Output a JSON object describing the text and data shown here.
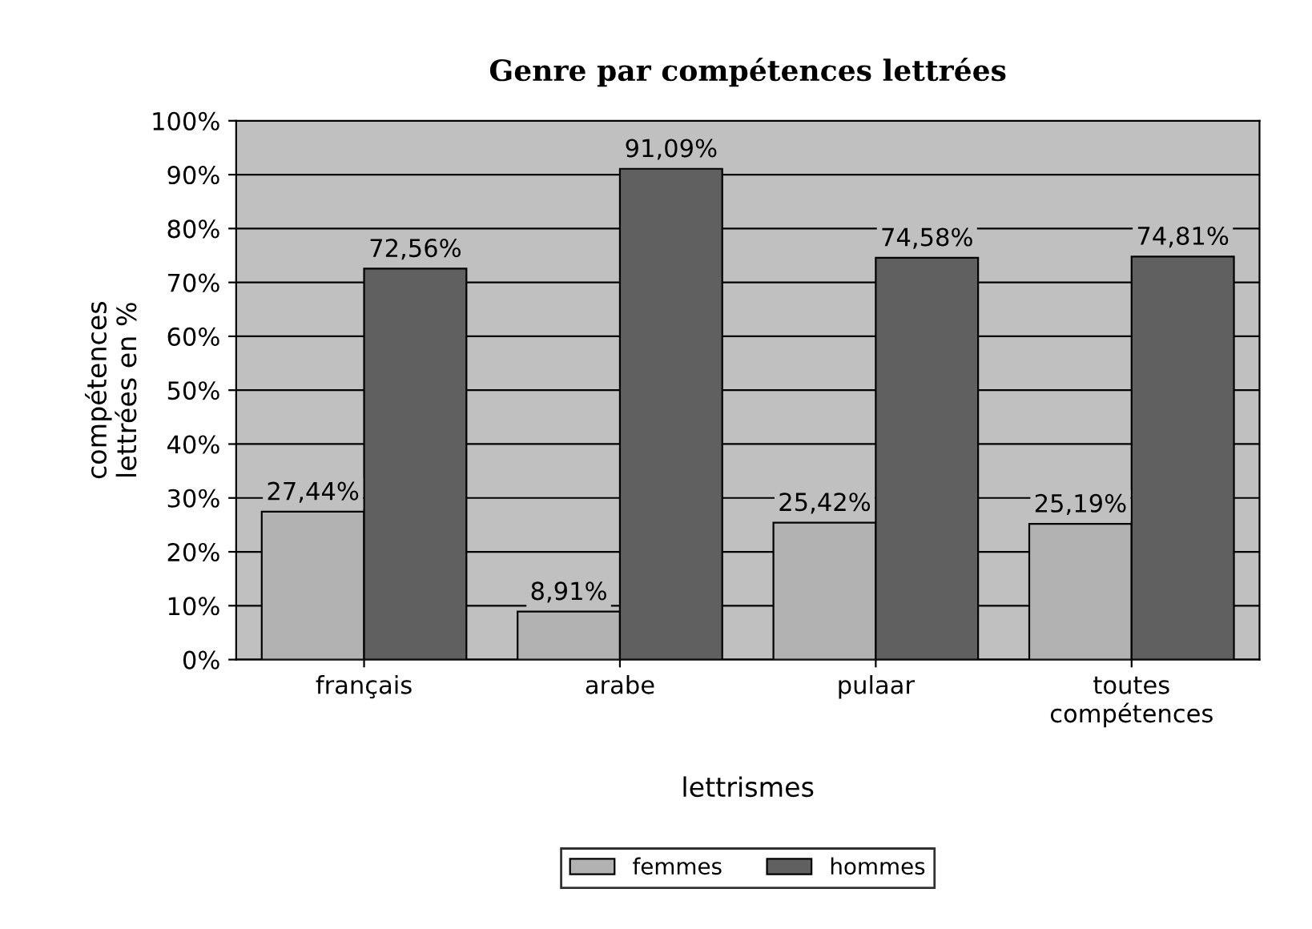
{
  "chart_data": {
    "type": "bar",
    "title": "Genre par compétences lettrées",
    "xlabel": "lettrismes",
    "ylabel": "compétences\nlettrées en %",
    "categories": [
      "français",
      "arabe",
      "pulaar",
      "toutes\ncompétences"
    ],
    "series": [
      {
        "name": "femmes",
        "color": "#b2b2b2",
        "values": [
          27.44,
          8.91,
          25.42,
          25.19
        ],
        "value_labels": [
          "27,44%",
          "8,91%",
          "25,42%",
          "25,19%"
        ]
      },
      {
        "name": "hommes",
        "color": "#606060",
        "values": [
          72.56,
          91.09,
          74.58,
          74.81
        ],
        "value_labels": [
          "72,56%",
          "91,09%",
          "74,58%",
          "74,81%"
        ]
      }
    ],
    "ylim": [
      0,
      100
    ],
    "yticks": [
      {
        "value": 0,
        "label": "0%"
      },
      {
        "value": 10,
        "label": "10%"
      },
      {
        "value": 20,
        "label": "20%"
      },
      {
        "value": 30,
        "label": "30%"
      },
      {
        "value": 40,
        "label": "40%"
      },
      {
        "value": 50,
        "label": "50%"
      },
      {
        "value": 60,
        "label": "60%"
      },
      {
        "value": 70,
        "label": "70%"
      },
      {
        "value": 80,
        "label": "80%"
      },
      {
        "value": 90,
        "label": "90%"
      },
      {
        "value": 100,
        "label": "100%"
      }
    ],
    "grid": "y",
    "legend": "bottom"
  }
}
